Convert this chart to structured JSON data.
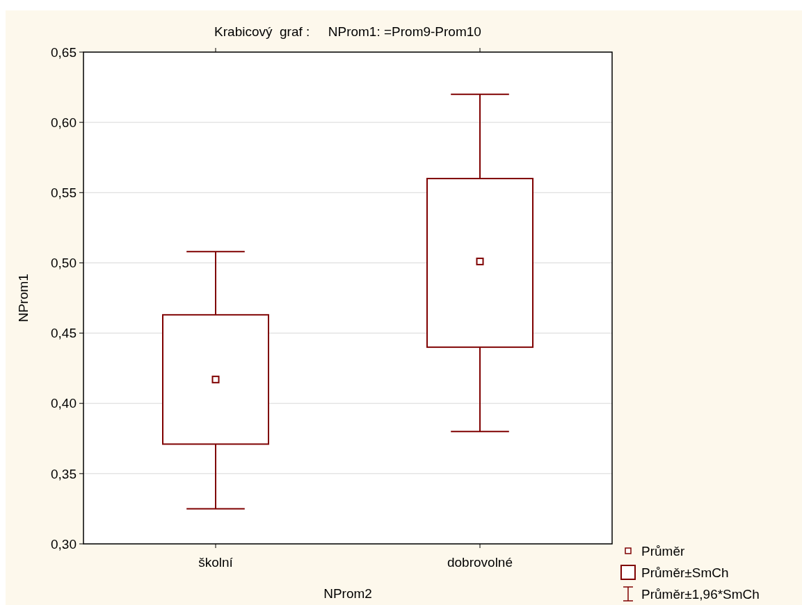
{
  "chart_data": {
    "type": "box",
    "title": "Krabicový  graf :     NProm1: =Prom9-Prom10",
    "xlabel": "NProm2",
    "ylabel": "NProm1",
    "categories": [
      "školní",
      "dobrovolné"
    ],
    "series": [
      {
        "color": "#7f0000",
        "boxes": [
          {
            "low": 0.325,
            "q1": 0.371,
            "median": 0.417,
            "q3": 0.463,
            "high": 0.508
          },
          {
            "low": 0.38,
            "q1": 0.44,
            "median": 0.501,
            "q3": 0.56,
            "high": 0.62
          }
        ]
      }
    ],
    "ylim": [
      0.3,
      0.65
    ],
    "yticks": [
      {
        "value": 0.3,
        "label": "0,30"
      },
      {
        "value": 0.35,
        "label": "0,35"
      },
      {
        "value": 0.4,
        "label": "0,40"
      },
      {
        "value": 0.45,
        "label": "0,45"
      },
      {
        "value": 0.5,
        "label": "0,50"
      },
      {
        "value": 0.55,
        "label": "0,55"
      },
      {
        "value": 0.6,
        "label": "0,60"
      },
      {
        "value": 0.65,
        "label": "0,65"
      }
    ],
    "grid": "y",
    "marker": "square",
    "annotations": [
      "Průměr",
      "Průměr±SmCh",
      "Průměr±1,96*SmCh"
    ]
  }
}
